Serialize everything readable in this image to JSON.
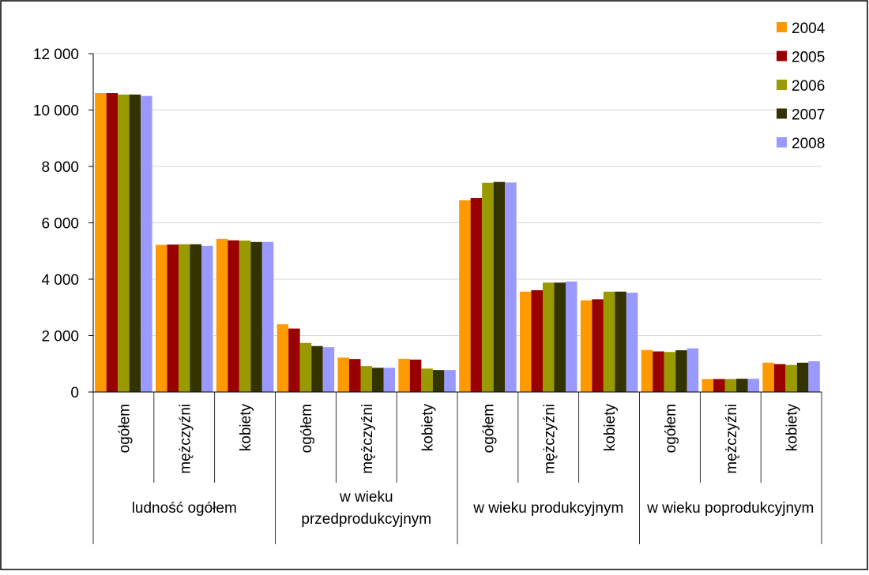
{
  "chart_data": {
    "type": "bar",
    "title": "",
    "xlabel": "",
    "ylabel": "",
    "ylim": [
      0,
      12000
    ],
    "yticks": [
      {
        "value": 0,
        "label": "0"
      },
      {
        "value": 2000,
        "label": "2 000"
      },
      {
        "value": 4000,
        "label": "4 000"
      },
      {
        "value": 6000,
        "label": "6 000"
      },
      {
        "value": 8000,
        "label": "8 000"
      },
      {
        "value": 10000,
        "label": "10 000"
      },
      {
        "value": 12000,
        "label": "12 000"
      }
    ],
    "grid": true,
    "legend_position": "top-right",
    "groups": [
      {
        "label": "ludność ogółem",
        "categories": [
          "ogółem",
          "mężczyźni",
          "kobiety"
        ]
      },
      {
        "label": "w wieku przedprodukcyjnym",
        "categories": [
          "ogółem",
          "mężczyźni",
          "kobiety"
        ]
      },
      {
        "label": "w wieku produkcyjnym",
        "categories": [
          "ogółem",
          "mężczyźni",
          "kobiety"
        ]
      },
      {
        "label": "w wieku poprodukcyjnym",
        "categories": [
          "ogółem",
          "mężczyźni",
          "kobiety"
        ]
      }
    ],
    "series": [
      {
        "name": "2004",
        "color": "#ff9900",
        "values": [
          10600,
          5220,
          5430,
          2400,
          1220,
          1180,
          6800,
          3560,
          3250,
          1490,
          460,
          1040
        ]
      },
      {
        "name": "2005",
        "color": "#990000",
        "values": [
          10600,
          5230,
          5380,
          2250,
          1170,
          1150,
          6880,
          3610,
          3290,
          1440,
          460,
          990
        ]
      },
      {
        "name": "2006",
        "color": "#999900",
        "values": [
          10550,
          5240,
          5370,
          1740,
          920,
          830,
          7420,
          3880,
          3560,
          1420,
          460,
          960
        ]
      },
      {
        "name": "2007",
        "color": "#333300",
        "values": [
          10550,
          5240,
          5320,
          1630,
          860,
          780,
          7450,
          3880,
          3560,
          1480,
          470,
          1040
        ]
      },
      {
        "name": "2008",
        "color": "#9999ff",
        "values": [
          10500,
          5180,
          5320,
          1590,
          860,
          780,
          7430,
          3920,
          3520,
          1550,
          470,
          1090
        ]
      }
    ]
  }
}
